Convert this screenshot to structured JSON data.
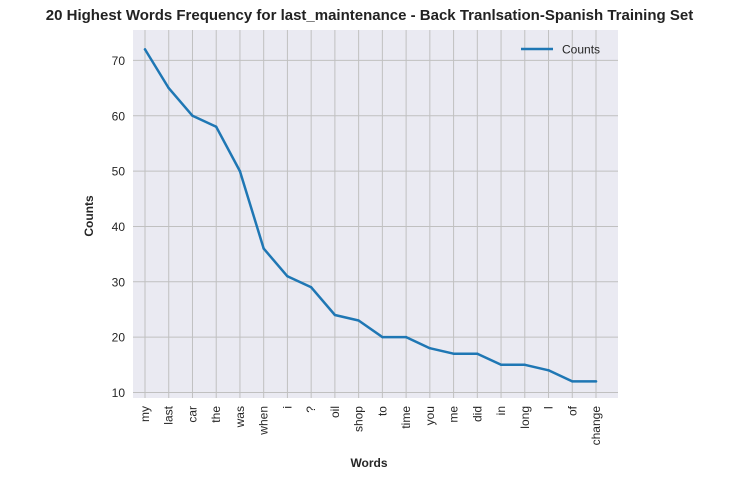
{
  "chart_data": {
    "type": "line",
    "title": "20 Highest Words Frequency for last_maintenance - Back Tranlsation-Spanish Training Set",
    "xlabel": "Words",
    "ylabel": "Counts",
    "categories": [
      "my",
      "last",
      "car",
      "the",
      "was",
      "when",
      "i",
      "?",
      "oil",
      "shop",
      "to",
      "time",
      "you",
      "me",
      "did",
      "in",
      "long",
      "I",
      "of",
      "change"
    ],
    "series": [
      {
        "name": "Counts",
        "values": [
          72,
          65,
          60,
          58,
          50,
          36,
          31,
          29,
          24,
          23,
          20,
          20,
          18,
          17,
          17,
          15,
          15,
          14,
          12,
          12
        ]
      }
    ],
    "ylim": [
      9,
      75.5
    ],
    "yticks": [
      10,
      20,
      30,
      40,
      50,
      60,
      70
    ],
    "grid": true,
    "legend_position": "top-right",
    "colors": {
      "line": "#1f77b4",
      "plot_bg": "#eaeaf2",
      "grid": "#c0c0c0"
    }
  }
}
